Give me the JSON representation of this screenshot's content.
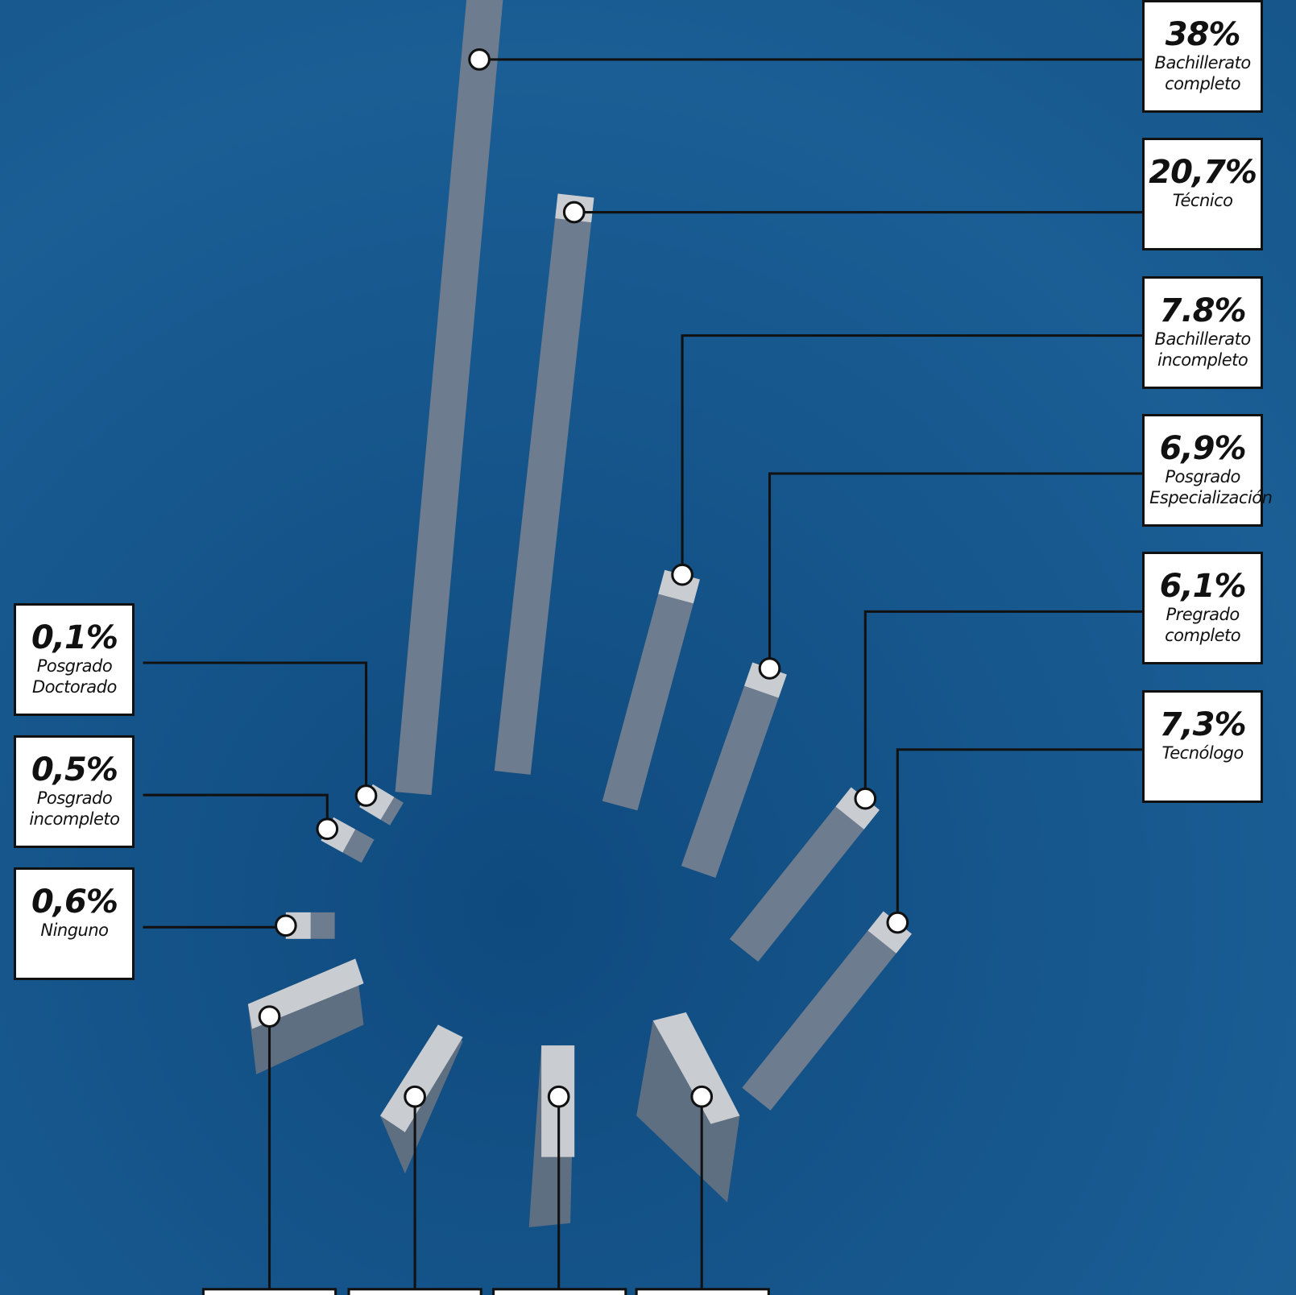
{
  "chart_data": {
    "type": "radial-bar",
    "categories": [
      "Bachillerato completo",
      "Técnico",
      "Bachillerato incompleto",
      "Posgrado Especialización",
      "Pregrado completo",
      "Tecnólogo",
      "Posgrado Doctorado",
      "Posgrado incompleto",
      "Ninguno"
    ],
    "values": [
      38,
      20.7,
      7.8,
      6.9,
      6.1,
      7.3,
      0.1,
      0.5,
      0.6
    ],
    "value_labels": [
      "38%",
      "20,7%",
      "7.8%",
      "6,9%",
      "6,1%",
      "7,3%",
      "0,1%",
      "0,5%",
      "0,6%"
    ],
    "color": "#6d7c8e"
  }
}
